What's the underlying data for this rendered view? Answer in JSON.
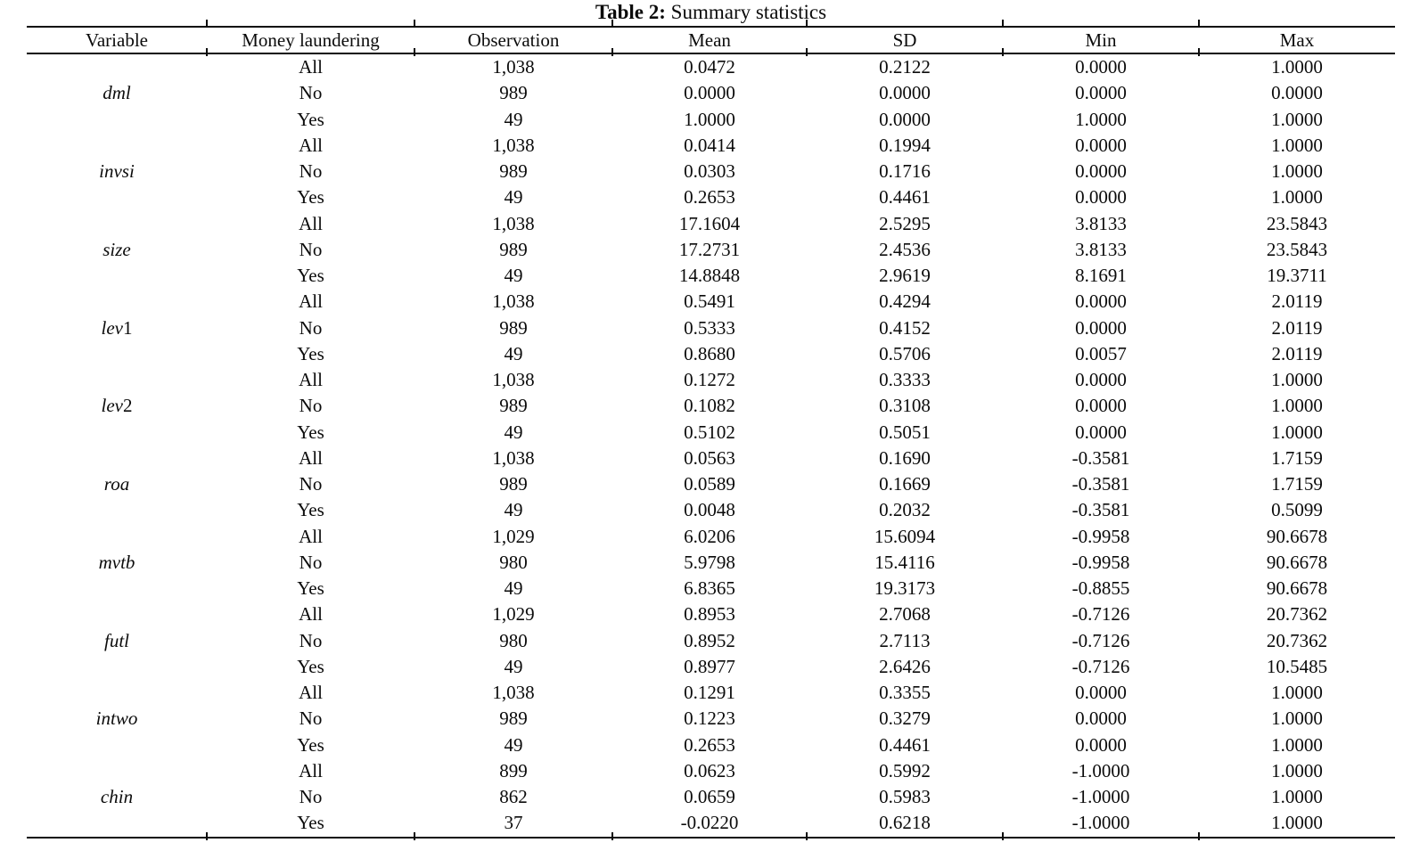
{
  "page": {
    "background": "#ffffff",
    "text_color": "#0b0b0b"
  },
  "title": {
    "prefix": "Table 2:",
    "rest": " Summary statistics"
  },
  "table": {
    "columns": [
      {
        "key": "variable",
        "label": "Variable"
      },
      {
        "key": "ml",
        "label": "Money laundering"
      },
      {
        "key": "obs",
        "label": "Observation"
      },
      {
        "key": "mean",
        "label": "Mean"
      },
      {
        "key": "sd",
        "label": "SD"
      },
      {
        "key": "min",
        "label": "Min"
      },
      {
        "key": "max",
        "label": "Max"
      }
    ],
    "groups": [
      {
        "variable": "dml",
        "rows": [
          {
            "ml": "All",
            "obs": "1,038",
            "mean": "0.0472",
            "sd": "0.2122",
            "min": "0.0000",
            "max": "1.0000"
          },
          {
            "ml": "No",
            "obs": "989",
            "mean": "0.0000",
            "sd": "0.0000",
            "min": "0.0000",
            "max": "0.0000"
          },
          {
            "ml": "Yes",
            "obs": "49",
            "mean": "1.0000",
            "sd": "0.0000",
            "min": "1.0000",
            "max": "1.0000"
          }
        ]
      },
      {
        "variable": "invsi",
        "rows": [
          {
            "ml": "All",
            "obs": "1,038",
            "mean": "0.0414",
            "sd": "0.1994",
            "min": "0.0000",
            "max": "1.0000"
          },
          {
            "ml": "No",
            "obs": "989",
            "mean": "0.0303",
            "sd": "0.1716",
            "min": "0.0000",
            "max": "1.0000"
          },
          {
            "ml": "Yes",
            "obs": "49",
            "mean": "0.2653",
            "sd": "0.4461",
            "min": "0.0000",
            "max": "1.0000"
          }
        ]
      },
      {
        "variable": "size",
        "rows": [
          {
            "ml": "All",
            "obs": "1,038",
            "mean": "17.1604",
            "sd": "2.5295",
            "min": "3.8133",
            "max": "23.5843"
          },
          {
            "ml": "No",
            "obs": "989",
            "mean": "17.2731",
            "sd": "2.4536",
            "min": "3.8133",
            "max": "23.5843"
          },
          {
            "ml": "Yes",
            "obs": "49",
            "mean": "14.8848",
            "sd": "2.9619",
            "min": "8.1691",
            "max": "19.3711"
          }
        ]
      },
      {
        "variable": "lev1",
        "rows": [
          {
            "ml": "All",
            "obs": "1,038",
            "mean": "0.5491",
            "sd": "0.4294",
            "min": "0.0000",
            "max": "2.0119"
          },
          {
            "ml": "No",
            "obs": "989",
            "mean": "0.5333",
            "sd": "0.4152",
            "min": "0.0000",
            "max": "2.0119"
          },
          {
            "ml": "Yes",
            "obs": "49",
            "mean": "0.8680",
            "sd": "0.5706",
            "min": "0.0057",
            "max": "2.0119"
          }
        ]
      },
      {
        "variable": "lev2",
        "rows": [
          {
            "ml": "All",
            "obs": "1,038",
            "mean": "0.1272",
            "sd": "0.3333",
            "min": "0.0000",
            "max": "1.0000"
          },
          {
            "ml": "No",
            "obs": "989",
            "mean": "0.1082",
            "sd": "0.3108",
            "min": "0.0000",
            "max": "1.0000"
          },
          {
            "ml": "Yes",
            "obs": "49",
            "mean": "0.5102",
            "sd": "0.5051",
            "min": "0.0000",
            "max": "1.0000"
          }
        ]
      },
      {
        "variable": "roa",
        "rows": [
          {
            "ml": "All",
            "obs": "1,038",
            "mean": "0.0563",
            "sd": "0.1690",
            "min": "-0.3581",
            "max": "1.7159"
          },
          {
            "ml": "No",
            "obs": "989",
            "mean": "0.0589",
            "sd": "0.1669",
            "min": "-0.3581",
            "max": "1.7159"
          },
          {
            "ml": "Yes",
            "obs": "49",
            "mean": "0.0048",
            "sd": "0.2032",
            "min": "-0.3581",
            "max": "0.5099"
          }
        ]
      },
      {
        "variable": "mvtb",
        "rows": [
          {
            "ml": "All",
            "obs": "1,029",
            "mean": "6.0206",
            "sd": "15.6094",
            "min": "-0.9958",
            "max": "90.6678"
          },
          {
            "ml": "No",
            "obs": "980",
            "mean": "5.9798",
            "sd": "15.4116",
            "min": "-0.9958",
            "max": "90.6678"
          },
          {
            "ml": "Yes",
            "obs": "49",
            "mean": "6.8365",
            "sd": "19.3173",
            "min": "-0.8855",
            "max": "90.6678"
          }
        ]
      },
      {
        "variable": "futl",
        "rows": [
          {
            "ml": "All",
            "obs": "1,029",
            "mean": "0.8953",
            "sd": "2.7068",
            "min": "-0.7126",
            "max": "20.7362"
          },
          {
            "ml": "No",
            "obs": "980",
            "mean": "0.8952",
            "sd": "2.7113",
            "min": "-0.7126",
            "max": "20.7362"
          },
          {
            "ml": "Yes",
            "obs": "49",
            "mean": "0.8977",
            "sd": "2.6426",
            "min": "-0.7126",
            "max": "10.5485"
          }
        ]
      },
      {
        "variable": "intwo",
        "rows": [
          {
            "ml": "All",
            "obs": "1,038",
            "mean": "0.1291",
            "sd": "0.3355",
            "min": "0.0000",
            "max": "1.0000"
          },
          {
            "ml": "No",
            "obs": "989",
            "mean": "0.1223",
            "sd": "0.3279",
            "min": "0.0000",
            "max": "1.0000"
          },
          {
            "ml": "Yes",
            "obs": "49",
            "mean": "0.2653",
            "sd": "0.4461",
            "min": "0.0000",
            "max": "1.0000"
          }
        ]
      },
      {
        "variable": "chin",
        "rows": [
          {
            "ml": "All",
            "obs": "899",
            "mean": "0.0623",
            "sd": "0.5992",
            "min": "-1.0000",
            "max": "1.0000"
          },
          {
            "ml": "No",
            "obs": "862",
            "mean": "0.0659",
            "sd": "0.5983",
            "min": "-1.0000",
            "max": "1.0000"
          },
          {
            "ml": "Yes",
            "obs": "37",
            "mean": "-0.0220",
            "sd": "0.6218",
            "min": "-1.0000",
            "max": "1.0000"
          }
        ]
      }
    ]
  }
}
